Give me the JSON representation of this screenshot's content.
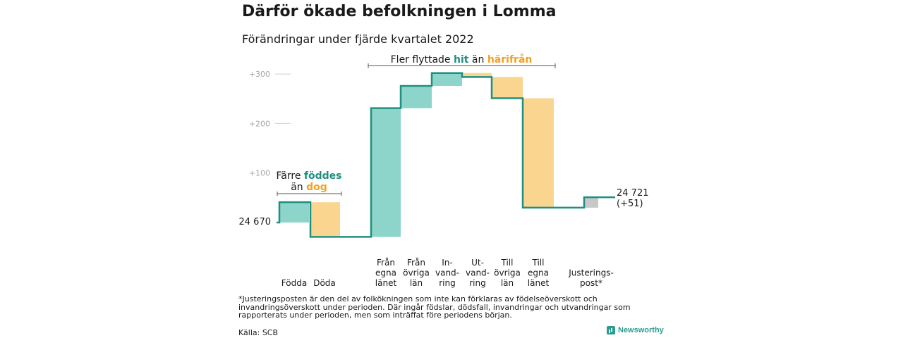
{
  "title": "Därför ökade befolkningen i Lomma",
  "subtitle": "Förändringar under fjärde kvartalet 2022",
  "footnote": "*Justeringsposten är den del av folkökningen som inte kan förklaras av födelseöverskott och invandringsöverskott under perioden. Där ingår födslar, dödsfall, invandringar och utvandringar som rapporterats under perioden, men som inträffat före periodens början.",
  "source": "Källa: SCB",
  "brand": "Newsworthy",
  "colors": {
    "teal": "#1f8f80",
    "teal_fill": "#8dd5ca",
    "orange": "#f2a21f",
    "orange_fill": "#f9d590",
    "gray_fill": "#c8c8c8",
    "axis_text": "#a6a6a6"
  },
  "annotations": {
    "birth": {
      "line1": "Färre",
      "hl1": "föddes",
      "line2": "än",
      "hl2": "dog"
    },
    "migration": {
      "pre": "Fler flyttade",
      "hl1": "hit",
      "mid": "än",
      "hl2": "härifrån"
    }
  },
  "start_label": "24 670",
  "end_label_1": "24 721",
  "end_label_2": "(+51)",
  "chart_data": {
    "type": "waterfall",
    "start_value": 24670,
    "end_value": 24721,
    "net_change": 51,
    "ylim": [
      -30,
      310
    ],
    "yticks": [
      {
        "value": 100,
        "label": "+100"
      },
      {
        "value": 200,
        "label": "+200"
      },
      {
        "value": 300,
        "label": "+300"
      }
    ],
    "steps": [
      {
        "label": [
          "Födda"
        ],
        "value": 41,
        "kind": "in"
      },
      {
        "label": [
          "Döda"
        ],
        "value": -70,
        "kind": "out"
      },
      {
        "label": [
          "Från",
          "egna",
          "länet"
        ],
        "value": 260,
        "kind": "in"
      },
      {
        "label": [
          "Från",
          "övriga",
          "län"
        ],
        "value": 45,
        "kind": "in"
      },
      {
        "label": [
          "In-",
          "vand-",
          "ring"
        ],
        "value": 26,
        "kind": "in"
      },
      {
        "label": [
          "Ut-",
          "vand-",
          "ring"
        ],
        "value": -8,
        "kind": "out"
      },
      {
        "label": [
          "Till",
          "övriga",
          "län"
        ],
        "value": -43,
        "kind": "out"
      },
      {
        "label": [
          "Till",
          "egna",
          "länet"
        ],
        "value": -221,
        "kind": "out"
      },
      {
        "label": [
          "Justerings-",
          "post*"
        ],
        "value": 21,
        "kind": "adj"
      }
    ]
  }
}
